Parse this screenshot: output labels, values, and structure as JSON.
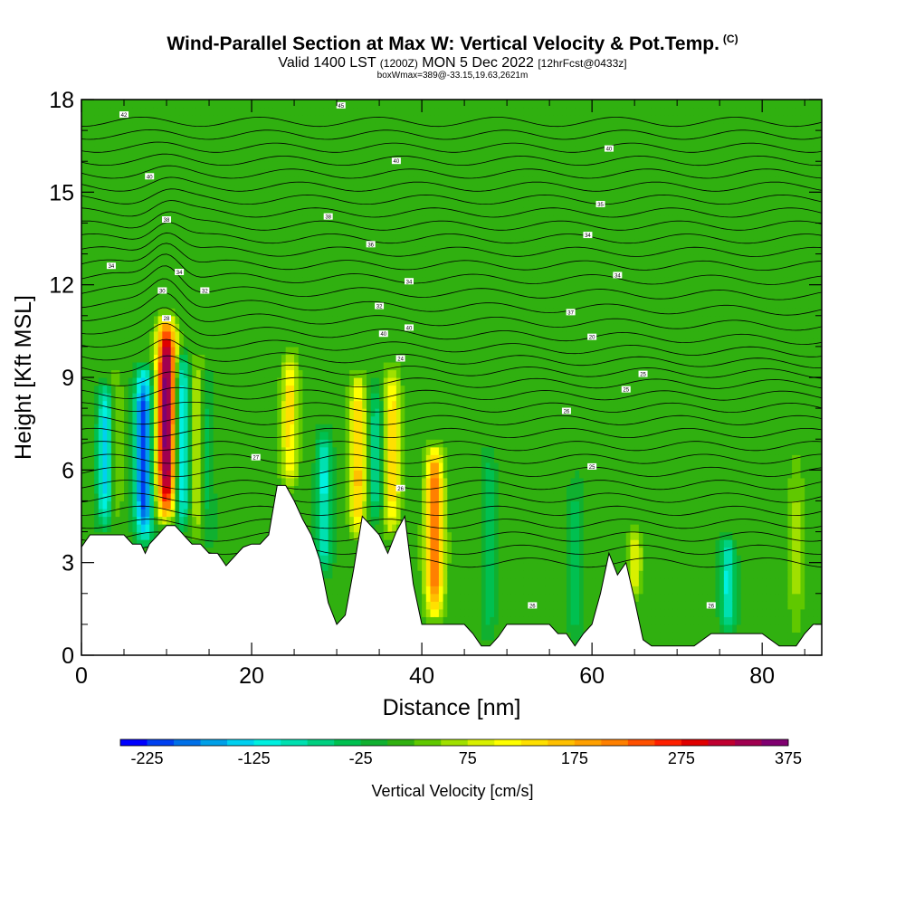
{
  "header": {
    "title": "Wind-Parallel Section at Max W: Vertical Velocity & Pot.Temp.",
    "copyright": "(C)",
    "valid_prefix": "Valid 1400 LST",
    "valid_z": "(1200Z)",
    "valid_date": "MON 5 Dec 2022",
    "forecast": "[12hrFcst@0433z]",
    "box_info": "boxWmax=389@-33.15,19.63,2621m"
  },
  "chart_data": {
    "type": "heatmap",
    "xlabel": "Distance [nm]",
    "ylabel": "Height [Kft MSL]",
    "xlim": [
      0,
      87
    ],
    "ylim": [
      0,
      18
    ],
    "x_ticks": [
      0,
      20,
      40,
      60,
      80
    ],
    "x_tick_labels": [
      "0",
      "20",
      "40",
      "60",
      "80"
    ],
    "y_ticks": [
      0,
      3,
      6,
      9,
      12,
      15,
      18
    ],
    "y_tick_labels": [
      "0",
      "3",
      "6",
      "9",
      "12",
      "15",
      "18"
    ],
    "background_w": 10,
    "updrafts": [
      {
        "x": 4.0,
        "top": 9.5,
        "peak": 60
      },
      {
        "x": 10.0,
        "top": 11.2,
        "peak": 375
      },
      {
        "x": 13.5,
        "top": 10.0,
        "peak": 80
      },
      {
        "x": 24.5,
        "top": 10.0,
        "peak": 140
      },
      {
        "x": 32.5,
        "top": 9.3,
        "peak": 165
      },
      {
        "x": 36.5,
        "top": 9.6,
        "peak": 145
      },
      {
        "x": 41.5,
        "top": 7.0,
        "peak": 240
      },
      {
        "x": 65.0,
        "top": 4.2,
        "peak": 90
      },
      {
        "x": 84.0,
        "top": 7.0,
        "peak": 55
      }
    ],
    "downdrafts": [
      {
        "x": 2.8,
        "top": 9.0,
        "peak": -140
      },
      {
        "x": 7.3,
        "top": 9.6,
        "peak": -225
      },
      {
        "x": 11.8,
        "top": 10.0,
        "peak": -150
      },
      {
        "x": 14.8,
        "top": 9.5,
        "peak": -35
      },
      {
        "x": 28.5,
        "top": 7.5,
        "peak": -110
      },
      {
        "x": 34.5,
        "top": 9.0,
        "peak": -70
      },
      {
        "x": 48.0,
        "top": 7.0,
        "peak": -45
      },
      {
        "x": 58.0,
        "top": 6.0,
        "peak": -40
      },
      {
        "x": 76.0,
        "top": 4.0,
        "peak": -110
      }
    ],
    "terrain": {
      "x": [
        0,
        1,
        5,
        6,
        7,
        7.5,
        8,
        9,
        10,
        11,
        12,
        13,
        14,
        15,
        16,
        17,
        18,
        19,
        20,
        21,
        22,
        23,
        24,
        25,
        26,
        27,
        28,
        29,
        30,
        31,
        32,
        33,
        34,
        35,
        36,
        37,
        38,
        39,
        40,
        41,
        42,
        43,
        44,
        45,
        46,
        47,
        48,
        49,
        50,
        51,
        52,
        53,
        54,
        55,
        56,
        57,
        58,
        59,
        60,
        61,
        62,
        63,
        64,
        65,
        66,
        67,
        68,
        69,
        70,
        72,
        74,
        76,
        78,
        80,
        82,
        84,
        85,
        86,
        87
      ],
      "y": [
        3.5,
        3.9,
        3.9,
        3.6,
        3.6,
        3.3,
        3.6,
        3.9,
        4.2,
        4.2,
        3.9,
        3.6,
        3.6,
        3.3,
        3.3,
        2.9,
        3.2,
        3.5,
        3.6,
        3.6,
        3.9,
        5.5,
        5.5,
        5.0,
        4.4,
        3.9,
        3.1,
        1.7,
        1.0,
        1.3,
        2.8,
        4.5,
        4.2,
        3.9,
        3.3,
        4.0,
        4.5,
        2.3,
        1.0,
        1.0,
        1.0,
        1.0,
        1.0,
        1.0,
        0.7,
        0.3,
        0.3,
        0.6,
        1.0,
        1.0,
        1.0,
        1.0,
        1.0,
        1.0,
        0.7,
        0.7,
        0.3,
        0.7,
        1.0,
        2.0,
        3.3,
        2.6,
        3.0,
        1.8,
        0.5,
        0.3,
        0.3,
        0.3,
        0.3,
        0.3,
        0.7,
        0.7,
        0.7,
        0.7,
        0.3,
        0.3,
        0.7,
        1.0,
        1.0
      ]
    },
    "theta_contour_labels": [
      {
        "x": 5,
        "y": 17.5,
        "text": "42"
      },
      {
        "x": 30.5,
        "y": 17.8,
        "text": "45"
      },
      {
        "x": 8,
        "y": 15.5,
        "text": "40"
      },
      {
        "x": 37,
        "y": 16.0,
        "text": "40"
      },
      {
        "x": 62,
        "y": 16.4,
        "text": "40"
      },
      {
        "x": 10,
        "y": 14.1,
        "text": "38"
      },
      {
        "x": 29,
        "y": 14.2,
        "text": "38"
      },
      {
        "x": 61,
        "y": 14.6,
        "text": "35"
      },
      {
        "x": 3.5,
        "y": 12.6,
        "text": "34"
      },
      {
        "x": 34,
        "y": 13.3,
        "text": "36"
      },
      {
        "x": 59.5,
        "y": 13.6,
        "text": "34"
      },
      {
        "x": 11.5,
        "y": 12.4,
        "text": "34"
      },
      {
        "x": 14.5,
        "y": 11.8,
        "text": "32"
      },
      {
        "x": 38.5,
        "y": 12.1,
        "text": "34"
      },
      {
        "x": 63,
        "y": 12.3,
        "text": "34"
      },
      {
        "x": 9.5,
        "y": 11.8,
        "text": "30"
      },
      {
        "x": 35,
        "y": 11.3,
        "text": "32"
      },
      {
        "x": 57.5,
        "y": 11.1,
        "text": "37"
      },
      {
        "x": 10,
        "y": 10.9,
        "text": "28"
      },
      {
        "x": 38.5,
        "y": 10.6,
        "text": "40"
      },
      {
        "x": 35.5,
        "y": 10.4,
        "text": "40"
      },
      {
        "x": 60,
        "y": 10.3,
        "text": "20"
      },
      {
        "x": 37.5,
        "y": 9.6,
        "text": "24"
      },
      {
        "x": 66,
        "y": 9.1,
        "text": "25"
      },
      {
        "x": 64,
        "y": 8.6,
        "text": "25"
      },
      {
        "x": 57,
        "y": 7.9,
        "text": "26"
      },
      {
        "x": 20.5,
        "y": 6.4,
        "text": "27"
      },
      {
        "x": 60,
        "y": 6.1,
        "text": "25"
      },
      {
        "x": 37.5,
        "y": 5.4,
        "text": "26"
      },
      {
        "x": 53,
        "y": 1.6,
        "text": "26"
      },
      {
        "x": 74,
        "y": 1.6,
        "text": "26"
      }
    ],
    "colorbar": {
      "title": "Vertical Velocity [cm/s]",
      "min": -250,
      "step": 25,
      "colors": [
        "#0000ff",
        "#0040f0",
        "#0070e8",
        "#00a0e8",
        "#00d0f0",
        "#00f0e0",
        "#00e0b0",
        "#00d080",
        "#00c050",
        "#10b030",
        "#30b010",
        "#60c800",
        "#a0e000",
        "#d8f000",
        "#ffff00",
        "#ffe000",
        "#ffc000",
        "#ffa000",
        "#ff8000",
        "#ff5000",
        "#ff2000",
        "#e00000",
        "#c00030",
        "#a00050",
        "#800070"
      ],
      "tick_values": [
        -225,
        -125,
        -25,
        75,
        175,
        275,
        375
      ],
      "tick_labels": [
        "-225",
        "-125",
        "-25",
        "75",
        "175",
        "275",
        "375"
      ]
    }
  }
}
